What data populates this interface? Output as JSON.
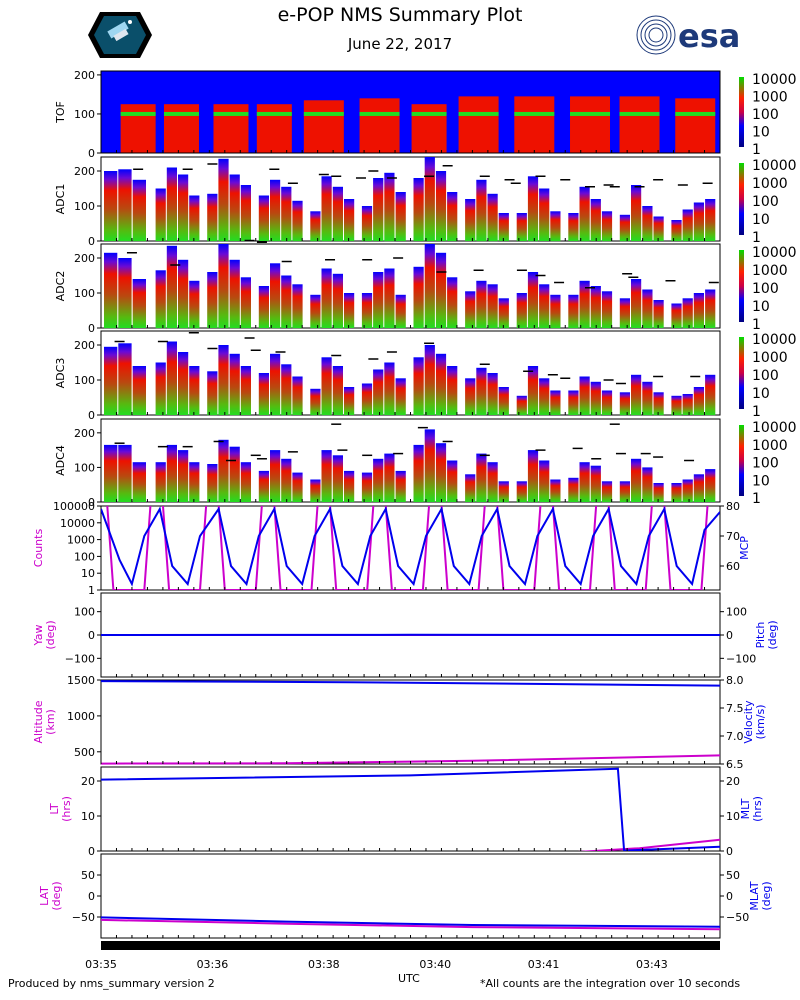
{
  "figure": {
    "title": "e-POP NMS Summary Plot",
    "date": "June 22, 2017",
    "esa_logo_text": "esa",
    "footer_left": "Produced by nms_summary version 2",
    "footer_right": "*All counts are the integration over 10 seconds",
    "xlabel": "UTC",
    "time_ticks": [
      "03:35",
      "03:36",
      "03:38",
      "03:40",
      "03:41",
      "03:43"
    ]
  },
  "colors": {
    "magenta": "#cc00cc",
    "blue": "#0000ee",
    "spec_bg": "#0000ff",
    "red": "#ee1100",
    "green": "#22dd22"
  },
  "chart_data": [
    {
      "id": "tof",
      "type": "heatmap",
      "ylabel": "TOF",
      "ylim": [
        0,
        210
      ],
      "yticks": [
        0,
        100,
        200
      ],
      "colorbar": {
        "ticks": [
          "10000",
          "1000",
          "100",
          "10",
          "1"
        ]
      },
      "groups": [
        [
          0.06,
          100,
          125,
          0
        ],
        [
          0.13,
          100,
          125,
          0
        ],
        [
          0.21,
          100,
          125,
          0
        ],
        [
          0.28,
          100,
          125,
          0
        ],
        [
          0.36,
          105,
          135,
          1
        ],
        [
          0.45,
          100,
          140,
          1
        ],
        [
          0.53,
          100,
          125,
          0
        ],
        [
          0.61,
          100,
          145,
          1
        ],
        [
          0.7,
          105,
          145,
          1
        ],
        [
          0.79,
          105,
          145,
          1
        ],
        [
          0.87,
          100,
          145,
          1
        ],
        [
          0.96,
          100,
          140,
          1
        ]
      ]
    },
    {
      "id": "adc1",
      "type": "bar",
      "ylabel": "ADC1",
      "ylim": [
        0,
        240
      ],
      "yticks": [
        0,
        100,
        200
      ],
      "colorbar": {
        "ticks": [
          "10000",
          "1000",
          "100",
          "10",
          "1"
        ]
      },
      "groups": [
        [
          200,
          205,
          175
        ],
        [
          150,
          210,
          190,
          130
        ],
        [
          135,
          235,
          190,
          160
        ],
        [
          130,
          175,
          155,
          115
        ],
        [
          85,
          185,
          155,
          120
        ],
        [
          100,
          180,
          195,
          140
        ],
        [
          180,
          255,
          200,
          140
        ],
        [
          120,
          175,
          135,
          80
        ],
        [
          80,
          185,
          150,
          85
        ],
        [
          80,
          155,
          120,
          85
        ],
        [
          75,
          160,
          100,
          70
        ],
        [
          60,
          90,
          110,
          120
        ]
      ],
      "dashes": [
        [
          0.06,
          205
        ],
        [
          0.14,
          205
        ],
        [
          0.18,
          220
        ],
        [
          0.28,
          205
        ],
        [
          0.31,
          165
        ],
        [
          0.36,
          190
        ],
        [
          0.38,
          185
        ],
        [
          0.42,
          180
        ],
        [
          0.44,
          200
        ],
        [
          0.47,
          180
        ],
        [
          0.53,
          185
        ],
        [
          0.56,
          215
        ],
        [
          0.62,
          185
        ],
        [
          0.66,
          175
        ],
        [
          0.67,
          165
        ],
        [
          0.71,
          185
        ],
        [
          0.75,
          175
        ],
        [
          0.79,
          155
        ],
        [
          0.82,
          160
        ],
        [
          0.83,
          155
        ],
        [
          0.87,
          155
        ],
        [
          0.9,
          175
        ],
        [
          0.94,
          160
        ],
        [
          0.98,
          165
        ]
      ]
    },
    {
      "id": "adc2",
      "type": "bar",
      "ylabel": "ADC2",
      "ylim": [
        0,
        240
      ],
      "yticks": [
        0,
        100,
        200
      ],
      "colorbar": {
        "ticks": [
          "10000",
          "1000",
          "100",
          "10",
          "1"
        ]
      },
      "groups": [
        [
          215,
          200,
          140
        ],
        [
          165,
          235,
          195,
          135
        ],
        [
          160,
          240,
          195,
          145
        ],
        [
          120,
          185,
          150,
          125
        ],
        [
          95,
          170,
          155,
          100
        ],
        [
          100,
          160,
          170,
          95
        ],
        [
          175,
          250,
          215,
          145
        ],
        [
          105,
          135,
          125,
          85
        ],
        [
          100,
          160,
          125,
          95
        ],
        [
          95,
          135,
          120,
          105
        ],
        [
          85,
          140,
          110,
          80
        ],
        [
          70,
          85,
          100,
          110
        ]
      ],
      "dashes": [
        [
          0.05,
          215
        ],
        [
          0.12,
          180
        ],
        [
          0.24,
          250
        ],
        [
          0.26,
          245
        ],
        [
          0.3,
          190
        ],
        [
          0.37,
          195
        ],
        [
          0.43,
          195
        ],
        [
          0.48,
          200
        ],
        [
          0.55,
          160
        ],
        [
          0.61,
          165
        ],
        [
          0.68,
          165
        ],
        [
          0.71,
          150
        ],
        [
          0.74,
          130
        ],
        [
          0.79,
          115
        ],
        [
          0.85,
          155
        ],
        [
          0.86,
          145
        ],
        [
          0.92,
          135
        ],
        [
          0.99,
          130
        ]
      ]
    },
    {
      "id": "adc3",
      "type": "bar",
      "ylabel": "ADC3",
      "ylim": [
        0,
        240
      ],
      "yticks": [
        0,
        100,
        200
      ],
      "colorbar": {
        "ticks": [
          "10000",
          "1000",
          "100",
          "10",
          "1"
        ]
      },
      "groups": [
        [
          195,
          205,
          140
        ],
        [
          150,
          210,
          180,
          140
        ],
        [
          125,
          200,
          175,
          140
        ],
        [
          120,
          175,
          145,
          110
        ],
        [
          75,
          165,
          140,
          80
        ],
        [
          90,
          130,
          150,
          105
        ],
        [
          165,
          200,
          175,
          140
        ],
        [
          105,
          135,
          120,
          80
        ],
        [
          55,
          140,
          105,
          70
        ],
        [
          70,
          110,
          95,
          70
        ],
        [
          65,
          115,
          95,
          65
        ],
        [
          55,
          60,
          80,
          115
        ]
      ],
      "dashes": [
        [
          0.03,
          210
        ],
        [
          0.1,
          210
        ],
        [
          0.15,
          235
        ],
        [
          0.18,
          190
        ],
        [
          0.24,
          220
        ],
        [
          0.25,
          185
        ],
        [
          0.29,
          180
        ],
        [
          0.38,
          170
        ],
        [
          0.44,
          160
        ],
        [
          0.47,
          180
        ],
        [
          0.53,
          205
        ],
        [
          0.62,
          145
        ],
        [
          0.69,
          125
        ],
        [
          0.73,
          115
        ],
        [
          0.75,
          105
        ],
        [
          0.82,
          100
        ],
        [
          0.84,
          90
        ],
        [
          0.9,
          110
        ],
        [
          0.96,
          110
        ]
      ]
    },
    {
      "id": "adc4",
      "type": "bar",
      "ylabel": "ADC4",
      "ylim": [
        0,
        240
      ],
      "yticks": [
        0,
        100,
        200
      ],
      "colorbar": {
        "ticks": [
          "10000",
          "1000",
          "100",
          "10",
          "1"
        ]
      },
      "groups": [
        [
          165,
          165,
          115
        ],
        [
          115,
          165,
          150,
          115
        ],
        [
          110,
          180,
          160,
          115
        ],
        [
          90,
          150,
          125,
          85
        ],
        [
          65,
          150,
          135,
          90
        ],
        [
          85,
          125,
          140,
          90
        ],
        [
          165,
          210,
          170,
          120
        ],
        [
          80,
          140,
          115,
          60
        ],
        [
          60,
          150,
          120,
          65
        ],
        [
          70,
          115,
          105,
          60
        ],
        [
          60,
          125,
          100,
          55
        ],
        [
          55,
          65,
          80,
          95
        ]
      ],
      "dashes": [
        [
          0.03,
          170
        ],
        [
          0.1,
          160
        ],
        [
          0.14,
          160
        ],
        [
          0.19,
          175
        ],
        [
          0.21,
          120
        ],
        [
          0.25,
          135
        ],
        [
          0.26,
          125
        ],
        [
          0.31,
          145
        ],
        [
          0.38,
          225
        ],
        [
          0.39,
          150
        ],
        [
          0.43,
          135
        ],
        [
          0.48,
          140
        ],
        [
          0.52,
          215
        ],
        [
          0.56,
          175
        ],
        [
          0.62,
          135
        ],
        [
          0.71,
          150
        ],
        [
          0.77,
          155
        ],
        [
          0.8,
          125
        ],
        [
          0.83,
          225
        ],
        [
          0.84,
          140
        ],
        [
          0.88,
          140
        ],
        [
          0.9,
          130
        ],
        [
          0.95,
          120
        ]
      ]
    },
    {
      "id": "counts_mcp",
      "type": "line",
      "ylabel_left": "Counts",
      "ylabel_right": "MCP",
      "yticks_left": [
        "100000",
        "10000",
        "1000",
        "100",
        "10",
        "1"
      ],
      "yticks_right": [
        "80",
        "70",
        "60"
      ],
      "note": "left axis log scale 1 to 1e5 (counts, magenta square wave); right axis MCP 52-80 (blue triangle wave)",
      "counts_x": [
        0,
        0.01,
        0.02,
        0.04,
        0.05,
        0.07,
        0.08,
        0.1,
        0.11,
        0.13,
        0.14,
        0.16,
        0.17,
        0.19,
        0.2,
        0.22,
        0.23,
        0.25,
        0.26,
        0.28,
        0.29,
        0.31,
        0.32,
        0.34,
        0.35,
        0.37,
        0.38,
        0.4,
        0.41,
        0.43,
        0.44,
        0.46,
        0.47,
        0.49,
        0.5,
        0.52,
        0.53,
        0.55,
        0.56,
        0.58,
        0.59,
        0.61,
        0.62,
        0.64,
        0.65,
        0.67,
        0.68,
        0.7,
        0.71,
        0.73,
        0.74,
        0.76,
        0.77,
        0.79,
        0.8,
        0.82,
        0.83,
        0.85,
        0.86,
        0.88,
        0.89,
        0.91,
        0.92,
        0.94,
        0.95,
        0.97,
        0.98,
        1
      ],
      "counts_y": [
        120000,
        120000,
        1,
        1,
        1,
        1,
        120000,
        120000,
        1,
        1,
        1,
        1,
        120000,
        120000,
        1,
        1,
        1,
        1,
        120000,
        120000,
        1,
        1,
        1,
        1,
        120000,
        120000,
        1,
        1,
        1,
        1,
        120000,
        120000,
        1,
        1,
        1,
        1,
        120000,
        120000,
        1,
        1,
        1,
        1,
        120000,
        120000,
        1,
        1,
        1,
        1,
        120000,
        120000,
        1,
        1,
        1,
        1,
        120000,
        120000,
        1,
        1,
        1,
        1,
        120000,
        120000,
        1,
        1,
        1,
        1,
        120000,
        120000
      ],
      "mcp_x": [
        0,
        0.03,
        0.05,
        0.07,
        0.095,
        0.115,
        0.14,
        0.16,
        0.19,
        0.21,
        0.235,
        0.255,
        0.28,
        0.3,
        0.325,
        0.345,
        0.37,
        0.39,
        0.415,
        0.435,
        0.46,
        0.48,
        0.505,
        0.525,
        0.55,
        0.57,
        0.595,
        0.615,
        0.64,
        0.66,
        0.685,
        0.705,
        0.73,
        0.75,
        0.775,
        0.795,
        0.82,
        0.84,
        0.865,
        0.885,
        0.91,
        0.93,
        0.955,
        0.975,
        1
      ],
      "mcp_y": [
        79,
        62,
        54,
        70,
        79,
        60,
        54,
        70,
        79,
        60,
        54,
        70,
        79,
        60,
        54,
        70,
        79,
        60,
        54,
        70,
        79,
        60,
        54,
        70,
        79,
        60,
        54,
        70,
        79,
        60,
        54,
        70,
        79,
        60,
        54,
        70,
        79,
        60,
        54,
        70,
        79,
        60,
        54,
        72,
        78
      ]
    },
    {
      "id": "yaw_pitch",
      "type": "line",
      "ylabel_left": "Yaw\n(deg)",
      "ylabel_right": "Pitch\n(deg)",
      "yticks_left": [
        "100",
        "0",
        "−100"
      ],
      "yticks_right": [
        "100",
        "0",
        "−100"
      ],
      "ylim": [
        -180,
        180
      ],
      "yaw": [
        [
          0,
          0
        ],
        [
          1,
          0
        ]
      ],
      "pitch": [
        [
          0,
          0
        ],
        [
          0.5,
          1
        ],
        [
          1,
          0
        ]
      ]
    },
    {
      "id": "alt_vel",
      "type": "line",
      "ylabel_left": "Altitude\n(km)",
      "ylabel_right": "Velocity\n(km/s)",
      "yticks_left": [
        "1500",
        "1000",
        "500"
      ],
      "yticks_right": [
        "8.0",
        "7.5",
        "7.0",
        "6.5"
      ],
      "ylim_left": [
        330,
        1500
      ],
      "ylim_right": [
        6.5,
        8.0
      ],
      "altitude": [
        [
          0,
          335
        ],
        [
          0.3,
          340
        ],
        [
          0.6,
          375
        ],
        [
          1,
          450
        ]
      ],
      "velocity": [
        [
          0,
          7.98
        ],
        [
          0.4,
          7.96
        ],
        [
          0.7,
          7.93
        ],
        [
          1,
          7.9
        ]
      ]
    },
    {
      "id": "lt_mlt",
      "type": "line",
      "ylabel_left": "LT\n(hrs)",
      "ylabel_right": "MLT\n(hrs)",
      "yticks_left": [
        "20",
        "10",
        "0"
      ],
      "yticks_right": [
        "20",
        "10",
        "0"
      ],
      "ylim": [
        0,
        24
      ],
      "lt": [
        [
          0.77,
          -0.3
        ],
        [
          0.87,
          0.8
        ],
        [
          1,
          3.2
        ]
      ],
      "mlt": [
        [
          0,
          20.4
        ],
        [
          0.5,
          21.6
        ],
        [
          0.835,
          23.5
        ],
        [
          0.845,
          0.1
        ],
        [
          1,
          1.2
        ]
      ]
    },
    {
      "id": "lat_mlat",
      "type": "line",
      "ylabel_left": "LAT\n(deg)",
      "ylabel_right": "MLAT\n(deg)",
      "yticks_left": [
        "50",
        "0",
        "−50"
      ],
      "yticks_right": [
        "50",
        "0",
        "−50"
      ],
      "ylim": [
        -100,
        100
      ],
      "lat": [
        [
          0,
          -57
        ],
        [
          0.3,
          -66
        ],
        [
          0.6,
          -74
        ],
        [
          1,
          -79
        ]
      ],
      "mlat": [
        [
          0,
          -51
        ],
        [
          0.3,
          -61
        ],
        [
          0.6,
          -69
        ],
        [
          1,
          -73
        ]
      ]
    }
  ]
}
